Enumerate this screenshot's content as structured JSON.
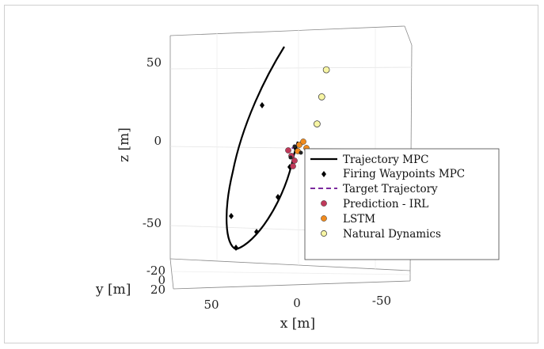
{
  "chart_data": {
    "type": "line",
    "view": "3d-perspective",
    "xlabel": "x [m]",
    "ylabel": "y [m]",
    "zlabel": "z [m]",
    "x_ticks": [
      "50",
      "0",
      "-50"
    ],
    "y_ticks": [
      "-20",
      "0",
      "20"
    ],
    "z_ticks": [
      "50",
      "0",
      "-50"
    ],
    "grid": true,
    "legend_position": "inside-right",
    "legend": [
      {
        "label": "Trajectory MPC",
        "marker": "line",
        "color": "#000000"
      },
      {
        "label": "Firing Waypoints MPC",
        "marker": "diamond",
        "color": "#000000"
      },
      {
        "label": "Target Trajectory",
        "marker": "dashed",
        "color": "#7b2a9e"
      },
      {
        "label": "Prediction - IRL",
        "marker": "circle",
        "color": "#c0395a"
      },
      {
        "label": "LSTM",
        "marker": "circle",
        "color": "#f08a1d"
      },
      {
        "label": "Natural Dynamics",
        "marker": "circle",
        "color": "#f7f5a4"
      }
    ],
    "series": [
      {
        "name": "Natural Dynamics",
        "points": [
          {
            "x": -12,
            "z": 16
          },
          {
            "x": -15,
            "z": 34
          },
          {
            "x": -18,
            "z": 52
          }
        ]
      }
    ]
  }
}
